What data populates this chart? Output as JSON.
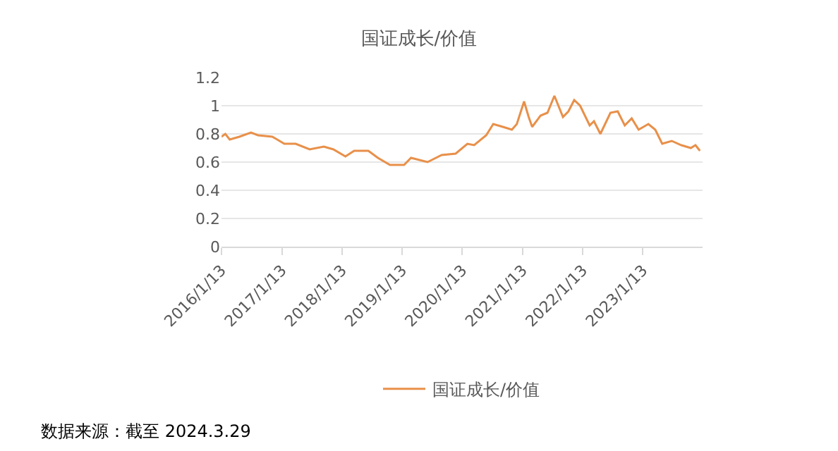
{
  "chart_data": {
    "type": "line",
    "title": "国证成长/价值",
    "x": [
      "2016-01-13",
      "2016-02-05",
      "2016-03-03",
      "2016-05-01",
      "2016-07-10",
      "2016-08-22",
      "2016-11-16",
      "2016-12-16",
      "2017-01-28",
      "2017-04-07",
      "2017-07-01",
      "2017-09-25",
      "2017-11-22",
      "2018-02-03",
      "2018-03-28",
      "2018-06-22",
      "2018-08-19",
      "2018-10-31",
      "2019-01-25",
      "2019-03-08",
      "2019-06-16",
      "2019-09-10",
      "2019-12-04",
      "2020-02-13",
      "2020-03-25",
      "2020-06-06",
      "2020-07-19",
      "2020-09-15",
      "2020-11-09",
      "2020-12-09",
      "2021-01-22",
      "2021-02-19",
      "2021-03-12",
      "2021-05-02",
      "2021-06-13",
      "2021-07-25",
      "2021-09-15",
      "2021-10-18",
      "2021-11-22",
      "2021-12-28",
      "2022-02-24",
      "2022-03-22",
      "2022-04-30",
      "2022-06-30",
      "2022-08-13",
      "2022-09-25",
      "2022-11-06",
      "2022-12-18",
      "2023-02-15",
      "2023-03-29",
      "2023-05-10",
      "2023-07-07",
      "2023-09-03",
      "2023-10-31",
      "2023-11-28",
      "2023-12-25"
    ],
    "series": [
      {
        "name": "国证成长/价值",
        "color": "#e8904a",
        "values": [
          0.78,
          0.8,
          0.76,
          0.78,
          0.81,
          0.79,
          0.78,
          0.76,
          0.73,
          0.73,
          0.69,
          0.71,
          0.69,
          0.64,
          0.68,
          0.68,
          0.63,
          0.58,
          0.58,
          0.63,
          0.6,
          0.65,
          0.66,
          0.73,
          0.72,
          0.79,
          0.87,
          0.85,
          0.83,
          0.87,
          1.03,
          0.92,
          0.85,
          0.93,
          0.95,
          1.07,
          0.92,
          0.96,
          1.04,
          1.0,
          0.86,
          0.89,
          0.8,
          0.95,
          0.96,
          0.86,
          0.91,
          0.83,
          0.87,
          0.83,
          0.73,
          0.75,
          0.72,
          0.7,
          0.72,
          0.68
        ]
      }
    ],
    "xlim": [
      "2016-01-13",
      "2024-01-10"
    ],
    "xticks": [
      {
        "value": "2016-01-13",
        "label": "2016/1/13"
      },
      {
        "value": "2017-01-13",
        "label": "2017/1/13"
      },
      {
        "value": "2018-01-13",
        "label": "2018/1/13"
      },
      {
        "value": "2019-01-13",
        "label": "2019/1/13"
      },
      {
        "value": "2020-01-13",
        "label": "2020/1/13"
      },
      {
        "value": "2021-01-13",
        "label": "2021/1/13"
      },
      {
        "value": "2022-01-13",
        "label": "2022/1/13"
      },
      {
        "value": "2023-01-13",
        "label": "2023/1/13"
      }
    ],
    "ylim": [
      0,
      1.2
    ],
    "yticks": [
      0,
      0.2,
      0.4,
      0.6,
      0.8,
      1,
      1.2
    ],
    "grid": "y",
    "legend": "bottom",
    "marker": "none",
    "line_style": "solid",
    "annotations": [
      "数据来源：截至 2024.3.29"
    ]
  }
}
